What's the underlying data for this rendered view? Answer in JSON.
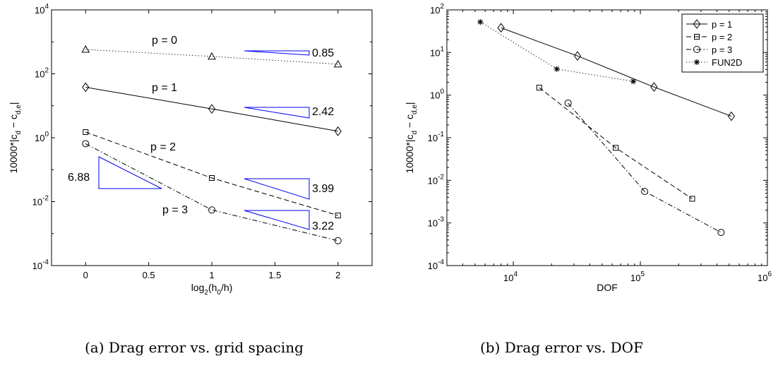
{
  "captions": {
    "a": "(a) Drag error vs. grid spacing",
    "b": "(b) Drag error vs. DOF"
  },
  "chart_data": [
    {
      "type": "line",
      "xlabel_main": "log",
      "xlabel_sub": "2",
      "xlabel_rest": "(h",
      "xlabel_sub2": "0",
      "xlabel_end": "/h)",
      "ylabel": "10000*|c_d − c_d,e|",
      "xlim": [
        -0.27,
        2.27
      ],
      "ylim": [
        0.0001,
        10000
      ],
      "yscale": "log",
      "xticks": [
        "0",
        "0.5",
        "1",
        "1.5",
        "2"
      ],
      "yticks": [
        {
          "base": "10",
          "exp": "-4"
        },
        {
          "base": "10",
          "exp": "-2"
        },
        {
          "base": "10",
          "exp": "0"
        },
        {
          "base": "10",
          "exp": "2"
        },
        {
          "base": "10",
          "exp": "4"
        }
      ],
      "grid": false,
      "series": [
        {
          "name": "p = 0",
          "x": [
            0,
            1,
            2
          ],
          "values": [
            580,
            350,
            200
          ],
          "marker": "triangle",
          "linestyle": "dotted"
        },
        {
          "name": "p = 1",
          "x": [
            0,
            1,
            2
          ],
          "values": [
            38,
            8,
            1.6
          ],
          "marker": "diamond",
          "linestyle": "solid"
        },
        {
          "name": "p = 2",
          "x": [
            0,
            1,
            2
          ],
          "values": [
            1.5,
            0.055,
            0.0037
          ],
          "marker": "square",
          "linestyle": "dashed"
        },
        {
          "name": "p = 3",
          "x": [
            0,
            1,
            2
          ],
          "values": [
            0.65,
            0.0055,
            0.0006
          ],
          "marker": "circle",
          "linestyle": "dashdot"
        }
      ],
      "series_labels": [
        "p = 0",
        "p = 1",
        "p = 2",
        "p = 3"
      ],
      "slope_labels": [
        "0.85",
        "2.42",
        "3.99",
        "3.22",
        "6.88"
      ],
      "triangle_color": "#0000ff"
    },
    {
      "type": "line",
      "xlabel": "DOF",
      "ylabel": "10000*|c_d − c_d,e|",
      "xscale": "log",
      "yscale": "log",
      "xlim": [
        3000,
        1000000
      ],
      "ylim": [
        0.0001,
        100
      ],
      "xticks": [
        {
          "base": "10",
          "exp": "4"
        },
        {
          "base": "10",
          "exp": "5"
        },
        {
          "base": "10",
          "exp": "6"
        }
      ],
      "yticks": [
        {
          "base": "10",
          "exp": "-4"
        },
        {
          "base": "10",
          "exp": "-3"
        },
        {
          "base": "10",
          "exp": "-2"
        },
        {
          "base": "10",
          "exp": "-1"
        },
        {
          "base": "10",
          "exp": "0"
        },
        {
          "base": "10",
          "exp": "1"
        },
        {
          "base": "10",
          "exp": "2"
        }
      ],
      "grid": false,
      "legend_position": "top-right",
      "series": [
        {
          "name": "p = 1",
          "x": [
            8000,
            32000,
            128000,
            520000
          ],
          "values": [
            38,
            8.3,
            1.55,
            0.32
          ],
          "marker": "diamond",
          "linestyle": "solid"
        },
        {
          "name": "p = 2",
          "x": [
            16000,
            64000,
            256000
          ],
          "values": [
            1.5,
            0.058,
            0.0037
          ],
          "marker": "square",
          "linestyle": "dashed"
        },
        {
          "name": "p = 3",
          "x": [
            27000,
            108000,
            432000
          ],
          "values": [
            0.65,
            0.0055,
            0.0006
          ],
          "marker": "circle",
          "linestyle": "dashdot"
        },
        {
          "name": "FUN2D",
          "x": [
            5500,
            22000,
            88000
          ],
          "values": [
            52,
            4.1,
            2.1
          ],
          "marker": "star",
          "linestyle": "dotted"
        }
      ]
    }
  ]
}
